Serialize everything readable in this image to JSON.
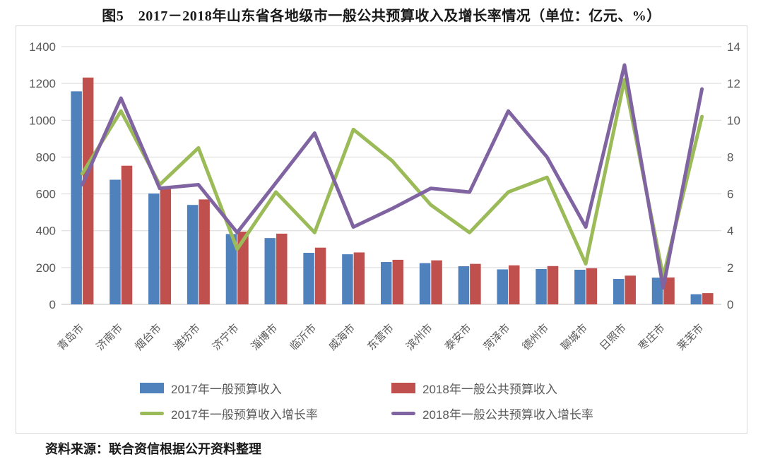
{
  "page": {
    "title": "图5　2017－2018年山东省各地级市一般公共预算收入及增长率情况（单位：亿元、%）",
    "source_note": "资料来源：联合资信根据公开资料整理"
  },
  "colors": {
    "bar2017": "#4F81BD",
    "bar2018": "#C0504D",
    "line2017": "#9BBB59",
    "line2018": "#8064A2",
    "grid": "#D9D9D9",
    "axis_line": "#BFBFBF",
    "axis_text": "#595959"
  },
  "chart_data": {
    "type": "bar+line",
    "title": "图5　2017－2018年山东省各地级市一般公共预算收入及增长率情况（单位：亿元、%）",
    "categories": [
      "青岛市",
      "济南市",
      "烟台市",
      "潍坊市",
      "济宁市",
      "淄博市",
      "临沂市",
      "威海市",
      "东营市",
      "滨州市",
      "泰安市",
      "菏泽市",
      "德州市",
      "聊城市",
      "日照市",
      "枣庄市",
      "莱芜市"
    ],
    "series": [
      {
        "name": "2017年一般预算收入",
        "type": "bar",
        "axis": "left",
        "color_key": "bar2017",
        "values": [
          1157,
          677,
          602,
          540,
          382,
          360,
          280,
          272,
          230,
          224,
          207,
          190,
          192,
          188,
          138,
          145,
          55
        ]
      },
      {
        "name": "2018年一般公共预算收入",
        "type": "bar",
        "axis": "left",
        "color_key": "bar2018",
        "values": [
          1232,
          753,
          638,
          570,
          395,
          384,
          308,
          282,
          242,
          239,
          220,
          212,
          208,
          196,
          156,
          146,
          61
        ]
      },
      {
        "name": "2017年一般预算收入增长率",
        "type": "line",
        "axis": "right",
        "color_key": "line2017",
        "values": [
          7.1,
          10.5,
          6.5,
          8.5,
          3.0,
          6.1,
          3.9,
          9.5,
          7.8,
          5.4,
          3.9,
          6.1,
          6.9,
          2.2,
          12.2,
          1.5,
          10.2
        ]
      },
      {
        "name": "2018年一般公共预算收入增长率",
        "type": "line",
        "axis": "right",
        "color_key": "line2018",
        "values": [
          6.5,
          11.2,
          6.3,
          6.5,
          3.9,
          6.6,
          9.3,
          4.2,
          5.2,
          6.3,
          6.1,
          10.5,
          8.0,
          4.2,
          13.0,
          0.9,
          11.7
        ]
      }
    ],
    "left_axis": {
      "min": 0,
      "max": 1400,
      "step": 200,
      "ticks": [
        0,
        200,
        400,
        600,
        800,
        1000,
        1200,
        1400
      ]
    },
    "right_axis": {
      "min": 0,
      "max": 14,
      "step": 2,
      "ticks": [
        0,
        2,
        4,
        6,
        8,
        10,
        12,
        14
      ]
    },
    "grid": true,
    "legend_position": "bottom"
  }
}
